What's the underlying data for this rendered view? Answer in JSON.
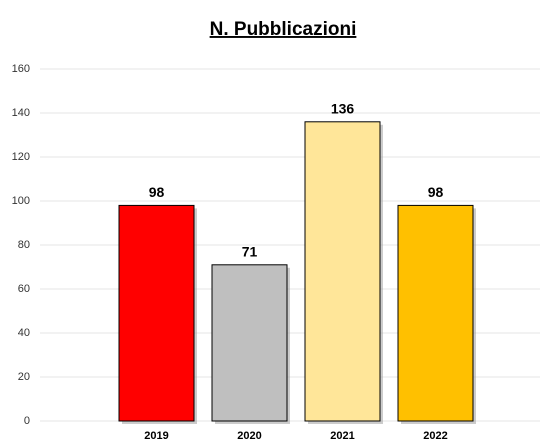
{
  "chart_data": {
    "type": "bar",
    "title": "N. Pubblicazioni",
    "categories": [
      "2019",
      "2020",
      "2021",
      "2022"
    ],
    "values": [
      98,
      71,
      136,
      98
    ],
    "colors": [
      "#ff0000",
      "#bfbfbf",
      "#ffe699",
      "#ffc000"
    ],
    "ylim": [
      0,
      160
    ],
    "yticks": [
      0,
      20,
      40,
      60,
      80,
      100,
      120,
      140,
      160
    ],
    "grid": true
  }
}
